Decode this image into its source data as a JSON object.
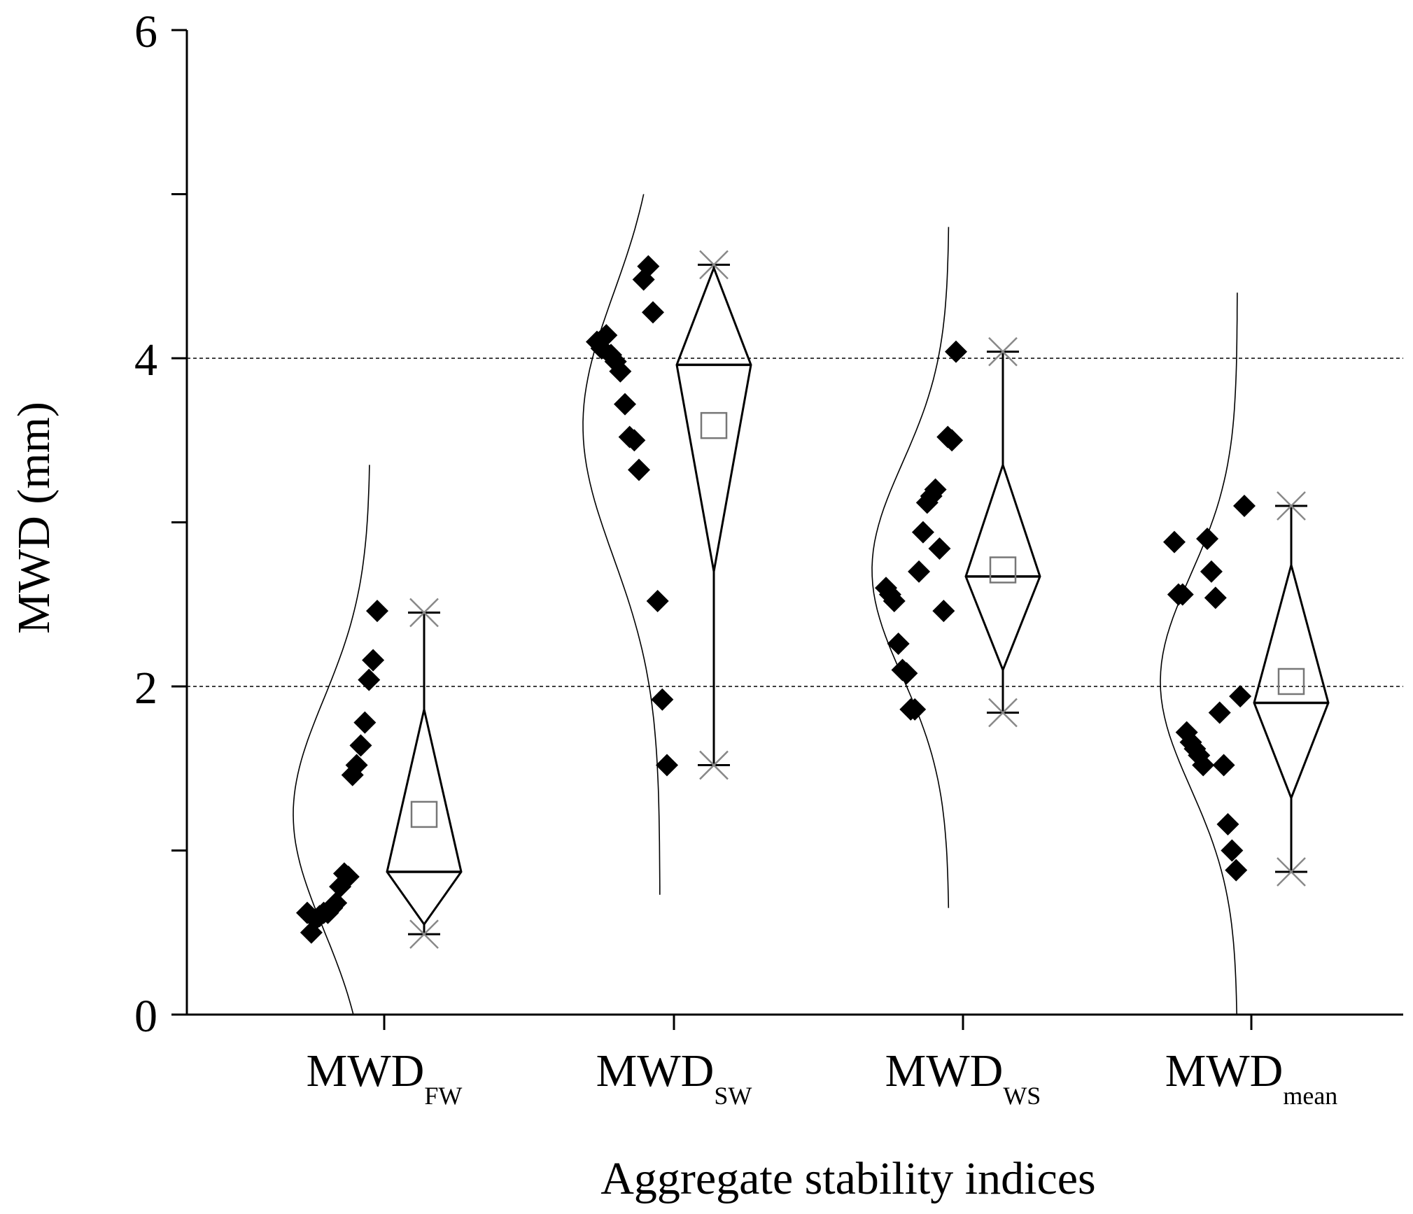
{
  "chart_data": {
    "type": "scatter",
    "subtype": "box-diamond-with-raw-points-and-normal-curves",
    "title": "",
    "xlabel": "Aggregate stability indices",
    "ylabel": "MWD (mm)",
    "ylim": [
      0,
      6
    ],
    "yticks": [
      0,
      2,
      4,
      6
    ],
    "ytick_labels": [
      "0",
      "2",
      "4",
      "6"
    ],
    "ygrid_lines": [
      2,
      4
    ],
    "categories": [
      {
        "base": "MWD",
        "sub": "FW"
      },
      {
        "base": "MWD",
        "sub": "SW"
      },
      {
        "base": "MWD",
        "sub": "WS"
      },
      {
        "base": "MWD",
        "sub": "mean"
      }
    ],
    "series": [
      {
        "name": "MWD_FW",
        "points": [
          0.62,
          0.5,
          0.58,
          0.6,
          0.62,
          0.62,
          0.65,
          0.68,
          0.78,
          0.86,
          0.84,
          1.46,
          1.52,
          1.64,
          1.78,
          2.04,
          2.16,
          2.46
        ],
        "min": 0.49,
        "max": 2.45,
        "median": 0.87,
        "mean": 1.22,
        "diamond_low": 0.55,
        "diamond_high": 1.86,
        "curve_mean": 1.22,
        "curve_sd": 0.7,
        "curve_range": [
          0,
          3.35
        ]
      },
      {
        "name": "MWD_SW",
        "points": [
          4.1,
          4.06,
          4.14,
          4.02,
          3.98,
          3.92,
          3.72,
          3.52,
          3.5,
          3.32,
          4.48,
          4.56,
          4.28,
          2.52,
          1.92,
          1.52
        ],
        "min": 1.52,
        "max": 4.57,
        "median": 3.96,
        "mean": 3.59,
        "diamond_low": 2.7,
        "diamond_high": 4.55,
        "curve_mean": 3.59,
        "curve_sd": 0.8,
        "curve_range": [
          0.73,
          5.0
        ]
      },
      {
        "name": "MWD_WS",
        "points": [
          2.6,
          2.56,
          2.52,
          2.26,
          2.1,
          2.08,
          1.86,
          1.86,
          2.7,
          2.94,
          3.12,
          3.16,
          3.2,
          2.84,
          2.46,
          3.52,
          3.5,
          4.04
        ],
        "min": 1.84,
        "max": 4.04,
        "median": 2.67,
        "mean": 2.71,
        "diamond_low": 2.1,
        "diamond_high": 3.35,
        "curve_mean": 2.71,
        "curve_sd": 0.65,
        "curve_range": [
          0.65,
          4.8
        ]
      },
      {
        "name": "MWD_mean",
        "points": [
          2.88,
          2.56,
          2.56,
          1.72,
          1.66,
          1.62,
          1.58,
          1.52,
          2.9,
          2.7,
          2.54,
          1.84,
          1.52,
          1.16,
          1.0,
          0.88,
          1.94,
          3.1
        ],
        "min": 0.87,
        "max": 3.1,
        "median": 1.9,
        "mean": 2.03,
        "diamond_low": 1.32,
        "diamond_high": 2.74,
        "curve_mean": 2.03,
        "curve_sd": 0.65,
        "curve_range": [
          0,
          4.4
        ]
      }
    ],
    "legend": "none"
  }
}
